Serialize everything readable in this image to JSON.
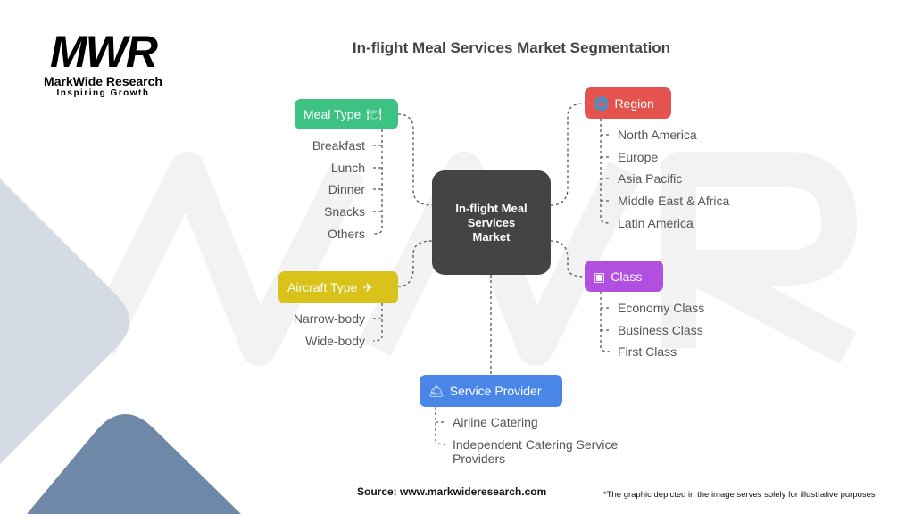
{
  "logo": {
    "mark": "MWR",
    "name": "MarkWide Research",
    "tagline": "Inspiring Growth"
  },
  "title": "In-flight Meal Services Market Segmentation",
  "center": "In-flight Meal Services Market",
  "segments": {
    "meal_type": {
      "label": "Meal Type",
      "icon": "food-tray-icon",
      "color": "#3cc283",
      "items": [
        "Breakfast",
        "Lunch",
        "Dinner",
        "Snacks",
        "Others"
      ]
    },
    "aircraft_type": {
      "label": "Aircraft Type",
      "icon": "airplane-icon",
      "color": "#d9c31b",
      "items": [
        "Narrow-body",
        "Wide-body"
      ]
    },
    "region": {
      "label": "Region",
      "icon": "globe-icon",
      "color": "#e5534f",
      "items": [
        "North America",
        "Europe",
        "Asia Pacific",
        "Middle East & Africa",
        "Latin America"
      ]
    },
    "class": {
      "label": "Class",
      "icon": "box-icon",
      "color": "#b04fe0",
      "items": [
        "Economy Class",
        "Business Class",
        "First Class"
      ]
    },
    "service_provider": {
      "label": "Service Provider",
      "icon": "service-icon",
      "color": "#4a86e8",
      "items": [
        "Airline Catering",
        "Independent Catering Service Providers"
      ]
    }
  },
  "source": "Source: www.markwideresearch.com",
  "disclaimer": "*The graphic depicted in the image serves solely for illustrative purposes"
}
